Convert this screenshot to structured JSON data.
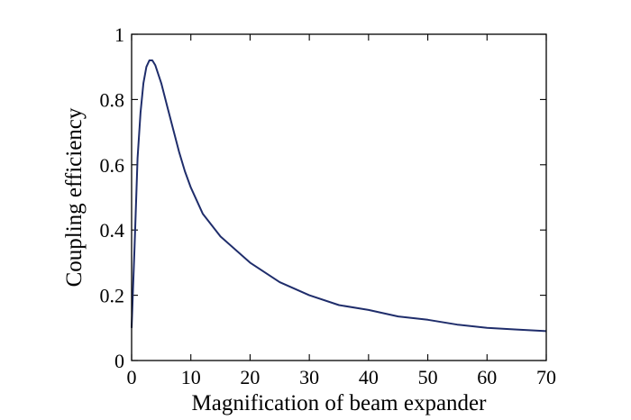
{
  "chart_data": {
    "type": "line",
    "title": "",
    "xlabel": "Magnification of beam expander",
    "ylabel": "Coupling efficiency",
    "xlim": [
      0,
      70
    ],
    "ylim": [
      0,
      1
    ],
    "xticks": [
      0,
      10,
      20,
      30,
      40,
      50,
      60,
      70
    ],
    "yticks": [
      0,
      0.2,
      0.4,
      0.6,
      0.8,
      1
    ],
    "xtick_labels": [
      "0",
      "10",
      "20",
      "30",
      "40",
      "50",
      "60",
      "70"
    ],
    "ytick_labels": [
      "0",
      "0.2",
      "0.4",
      "0.6",
      "0.8",
      "1"
    ],
    "grid": false,
    "line_color": "#1f2d6b",
    "series": [
      {
        "x": [
          0,
          0.5,
          1,
          1.5,
          2,
          2.5,
          3,
          3.5,
          4,
          5,
          6,
          7,
          8,
          9,
          10,
          12,
          15,
          20,
          25,
          30,
          35,
          40,
          45,
          50,
          55,
          60,
          65,
          70
        ],
        "values": [
          0.1,
          0.35,
          0.62,
          0.76,
          0.85,
          0.9,
          0.92,
          0.92,
          0.905,
          0.85,
          0.78,
          0.71,
          0.64,
          0.58,
          0.53,
          0.45,
          0.38,
          0.3,
          0.24,
          0.2,
          0.17,
          0.155,
          0.135,
          0.125,
          0.11,
          0.1,
          0.095,
          0.09
        ]
      }
    ]
  }
}
